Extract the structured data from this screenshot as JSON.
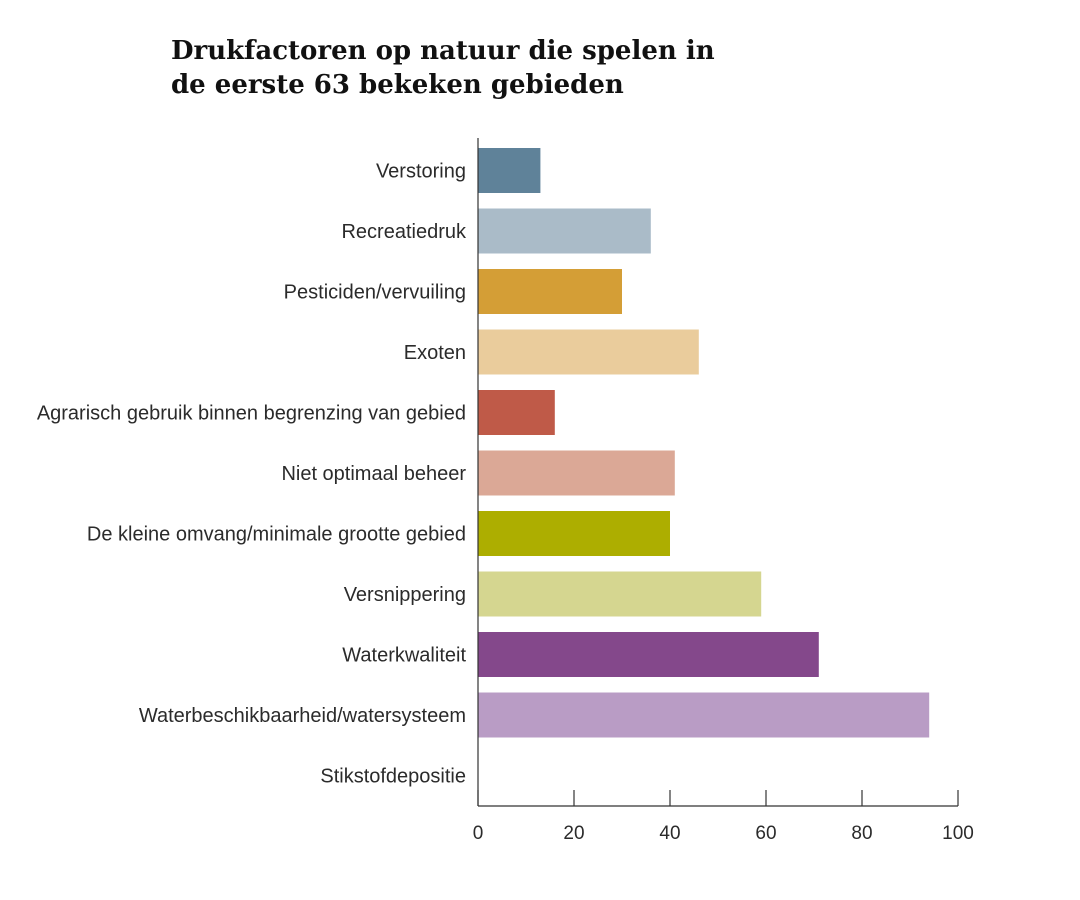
{
  "chart_data": {
    "type": "bar",
    "orientation": "horizontal",
    "title_lines": [
      "Drukfactoren op natuur die spelen in",
      "de eerste 63 bekeken gebieden"
    ],
    "xlabel": "",
    "ylabel": "",
    "xlim": [
      0,
      100
    ],
    "x_ticks": [
      "0",
      "20",
      "40",
      "60",
      "80",
      "100"
    ],
    "grid": false,
    "legend": "none",
    "categories": [
      "Verstoring",
      "Recreatiedruk",
      "Pesticiden/vervuiling",
      "Exoten",
      "Agrarisch gebruik binnen begrenzing van gebied",
      "Niet optimaal beheer",
      "De kleine omvang/minimale grootte gebied",
      "Versnippering",
      "Waterkwaliteit",
      "Waterbeschikbaarheid/watersysteem",
      "Stikstofdepositie"
    ],
    "values": [
      13,
      36,
      30,
      46,
      16,
      41,
      40,
      59,
      71,
      94,
      0
    ],
    "colors": [
      "#5f8299",
      "#aabbc8",
      "#d49e36",
      "#eacc9c",
      "#bf5a48",
      "#dba896",
      "#adae00",
      "#d5d690",
      "#84488b",
      "#b99cc5",
      "#ffffff"
    ],
    "axis_color": "#333333",
    "text_color": "#2b2b2b"
  }
}
